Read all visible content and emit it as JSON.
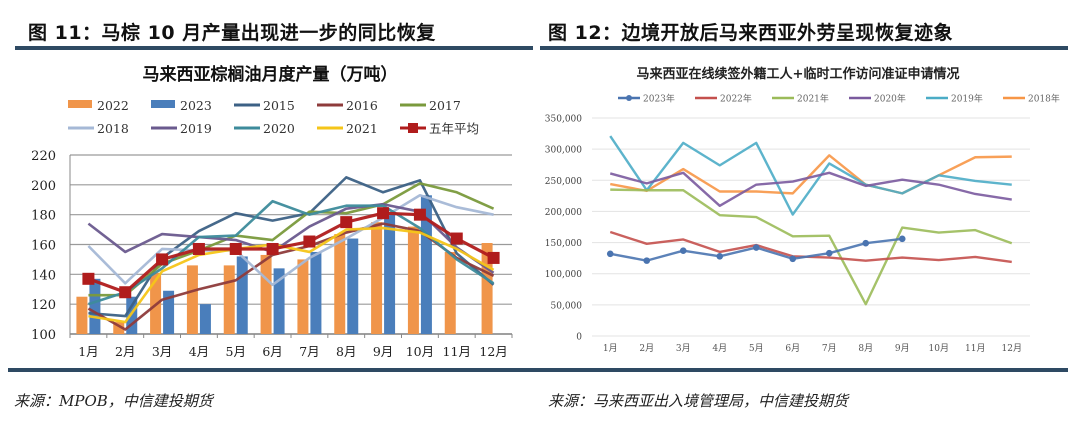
{
  "figures": {
    "left": {
      "caption": "图 11：马棕 10 月产量出现进一步的同比恢复",
      "source": "来源：MPOB，中信建投期货"
    },
    "right": {
      "caption": "图 12：边境开放后马来西亚外劳呈现恢复迹象",
      "source": "来源：马来西亚出入境管理局，中信建投期货"
    }
  },
  "chart_data": [
    {
      "type": "bar",
      "title": "马来西亚棕榈油月度产量（万吨）",
      "xlabel": "",
      "ylabel": "",
      "categories": [
        "1月",
        "2月",
        "3月",
        "4月",
        "5月",
        "6月",
        "7月",
        "8月",
        "9月",
        "10月",
        "11月",
        "12月"
      ],
      "ylim": [
        100,
        220
      ],
      "yticks": [
        100,
        120,
        140,
        160,
        180,
        200,
        220
      ],
      "grid": true,
      "legend": "top",
      "bar_series": [
        {
          "name": "2022",
          "color": "#f0954a",
          "values": [
            125,
            108,
            141,
            146,
            146,
            153,
            150,
            167,
            175,
            172,
            155,
            161
          ]
        },
        {
          "name": "2023",
          "color": "#4a7ebb",
          "values": [
            137,
            125,
            129,
            120,
            152,
            144,
            155,
            164,
            180,
            193,
            null,
            null
          ]
        }
      ],
      "line_series": [
        {
          "name": "2015",
          "color": "#3c6185",
          "values": [
            114,
            112,
            151,
            169,
            181,
            176,
            181,
            205,
            195,
            203,
            154,
            133
          ]
        },
        {
          "name": "2016",
          "color": "#8e3b3b",
          "values": [
            117,
            103,
            123,
            130,
            136,
            153,
            159,
            168,
            174,
            169,
            151,
            139
          ]
        },
        {
          "name": "2017",
          "color": "#7a9a3c",
          "values": [
            126,
            126,
            147,
            156,
            166,
            163,
            182,
            181,
            187,
            201,
            195,
            184
          ]
        },
        {
          "name": "2018",
          "color": "#a5b8d6",
          "values": [
            159,
            134,
            157,
            156,
            156,
            133,
            151,
            164,
            178,
            193,
            185,
            180
          ]
        },
        {
          "name": "2019",
          "color": "#6a5a8e",
          "values": [
            174,
            155,
            167,
            165,
            163,
            155,
            172,
            184,
            187,
            182,
            158,
            141
          ]
        },
        {
          "name": "2020",
          "color": "#3d8b9b",
          "values": [
            120,
            128,
            144,
            165,
            166,
            189,
            180,
            186,
            186,
            171,
            150,
            134
          ]
        },
        {
          "name": "2021",
          "color": "#f5c518",
          "values": [
            112,
            108,
            142,
            153,
            157,
            160,
            155,
            170,
            171,
            168,
            157,
            143
          ]
        },
        {
          "name": "五年平均",
          "color": "#b01c1c",
          "marker": "square",
          "values": [
            137,
            128,
            150,
            157,
            157,
            157,
            162,
            175,
            181,
            180,
            164,
            151
          ]
        }
      ]
    },
    {
      "type": "line",
      "title": "马来西亚在线续签外籍工人+临时工作访问准证申请情况",
      "xlabel": "",
      "ylabel": "",
      "categories": [
        "1月",
        "2月",
        "3月",
        "4月",
        "5月",
        "6月",
        "7月",
        "8月",
        "9月",
        "10月",
        "11月",
        "12月"
      ],
      "ylim": [
        0,
        350000
      ],
      "yticks": [
        "0",
        "50,000",
        "100,000",
        "150,000",
        "200,000",
        "250,000",
        "300,000",
        "350,000"
      ],
      "ytick_values": [
        0,
        50000,
        100000,
        150000,
        200000,
        250000,
        300000,
        350000
      ],
      "grid": true,
      "legend": "top",
      "series": [
        {
          "name": "2023年",
          "color": "#4a74b0",
          "marker": "circle",
          "values": [
            132000,
            121000,
            137000,
            128000,
            142000,
            124000,
            133000,
            149000,
            156000,
            null,
            null,
            null
          ]
        },
        {
          "name": "2022年",
          "color": "#c4504d",
          "values": [
            167000,
            148000,
            155000,
            135000,
            146000,
            128000,
            126000,
            121000,
            126000,
            122000,
            127000,
            119000
          ]
        },
        {
          "name": "2021年",
          "color": "#9bbb59",
          "values": [
            235000,
            234000,
            234000,
            194000,
            191000,
            160000,
            161000,
            51000,
            174000,
            166000,
            170000,
            149000
          ]
        },
        {
          "name": "2020年",
          "color": "#7a5a9e",
          "values": [
            261000,
            245000,
            262000,
            209000,
            243000,
            248000,
            262000,
            241000,
            251000,
            243000,
            228000,
            219000
          ]
        },
        {
          "name": "2019年",
          "color": "#4bacc6",
          "values": [
            321000,
            234000,
            310000,
            274000,
            310000,
            195000,
            277000,
            243000,
            229000,
            258000,
            249000,
            243000
          ]
        },
        {
          "name": "2018年",
          "color": "#f79646",
          "values": [
            244000,
            233000,
            268000,
            232000,
            232000,
            229000,
            290000,
            243000,
            229000,
            258000,
            287000,
            288000
          ]
        }
      ]
    }
  ]
}
